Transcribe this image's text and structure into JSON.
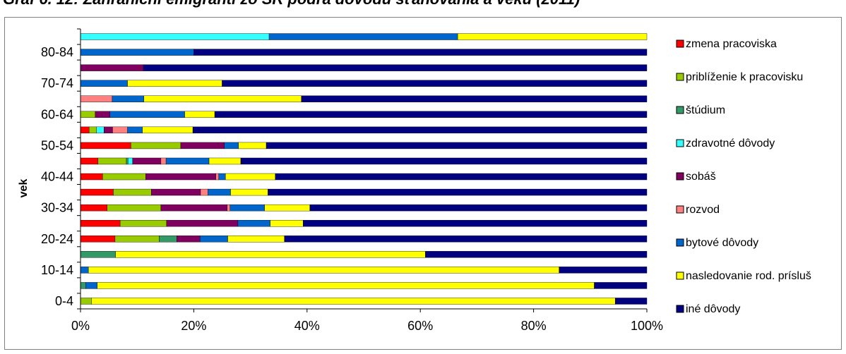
{
  "chart_data": {
    "type": "bar",
    "orientation": "horizontal",
    "stacked": "percent",
    "title": "Graf 6. 12: Zahraniční emigranti zo SR podľa dôvodu sťahovania a veku (2011)",
    "xlabel": "",
    "ylabel": "vek",
    "xlim": [
      0,
      100
    ],
    "xticks": [
      "0%",
      "20%",
      "40%",
      "60%",
      "80%",
      "100%"
    ],
    "grid": false,
    "legend_position": "right",
    "categories": [
      "0-4",
      "5-9",
      "10-14",
      "15-19",
      "20-24",
      "25-29",
      "30-34",
      "35-39",
      "40-44",
      "45-49",
      "50-54",
      "55-59",
      "60-64",
      "65-69",
      "70-74",
      "75-79",
      "80-84",
      "85+"
    ],
    "labeled_categories": [
      "0-4",
      "10-14",
      "20-24",
      "30-34",
      "40-44",
      "50-54",
      "60-64",
      "70-74",
      "80-84"
    ],
    "series": [
      {
        "name": "zmena pracoviska",
        "color": "#ff0000",
        "values": [
          0,
          0,
          0,
          0,
          6.1,
          7.0,
          4.7,
          5.8,
          3.9,
          3.1,
          8.9,
          1.5,
          0,
          0,
          0,
          0,
          0,
          0
        ]
      },
      {
        "name": "priblíženie k pracovisku",
        "color": "#99cc00",
        "values": [
          2.0,
          0,
          0,
          0,
          7.8,
          8.2,
          9.5,
          6.7,
          7.6,
          5.0,
          8.8,
          1.3,
          2.6,
          0,
          0,
          0,
          0,
          0
        ]
      },
      {
        "name": "štúdium",
        "color": "#339966",
        "values": [
          0,
          0.9,
          0,
          6.2,
          3.1,
          0,
          0,
          0,
          0,
          0.3,
          0,
          0,
          0,
          0,
          0,
          0,
          0,
          0
        ]
      },
      {
        "name": "zdravotné dôvody",
        "color": "#33ffff",
        "values": [
          0,
          0,
          0,
          0,
          0,
          0,
          0,
          0,
          0,
          0.8,
          0,
          1.3,
          0,
          0,
          0,
          0,
          0,
          33.3
        ]
      },
      {
        "name": "sobáš",
        "color": "#800060",
        "values": [
          0,
          0,
          0,
          0,
          4.1,
          12.6,
          11.7,
          8.7,
          12.4,
          5.0,
          7.7,
          1.5,
          2.6,
          0,
          0,
          11.1,
          0,
          0
        ]
      },
      {
        "name": "rozvod",
        "color": "#ff8080",
        "values": [
          0,
          0,
          0,
          0,
          0,
          0,
          0.5,
          1.3,
          0.5,
          0.9,
          0,
          2.6,
          0,
          5.6,
          0,
          0,
          0,
          0
        ]
      },
      {
        "name": "bytové dôvody",
        "color": "#0066cc",
        "values": [
          0,
          2.0,
          1.4,
          0,
          4.9,
          5.7,
          6.1,
          4.0,
          1.2,
          7.6,
          2.5,
          2.6,
          13.2,
          5.6,
          8.3,
          0,
          20.0,
          33.3
        ]
      },
      {
        "name": "nasledovanie rod. prísluš",
        "color": "#ffff00",
        "values": [
          94.3,
          86.0,
          83.1,
          54.7,
          10.0,
          5.8,
          8.0,
          6.6,
          8.8,
          5.6,
          4.9,
          8.8,
          5.3,
          27.8,
          16.7,
          0,
          0,
          33.4
        ]
      },
      {
        "name": "iné dôvody",
        "color": "#000080",
        "values": [
          5.7,
          9.1,
          15.5,
          39.1,
          64.0,
          60.7,
          59.5,
          66.9,
          65.6,
          71.7,
          67.2,
          79.2,
          76.3,
          61.0,
          75.0,
          88.9,
          80.0,
          0
        ]
      }
    ]
  }
}
